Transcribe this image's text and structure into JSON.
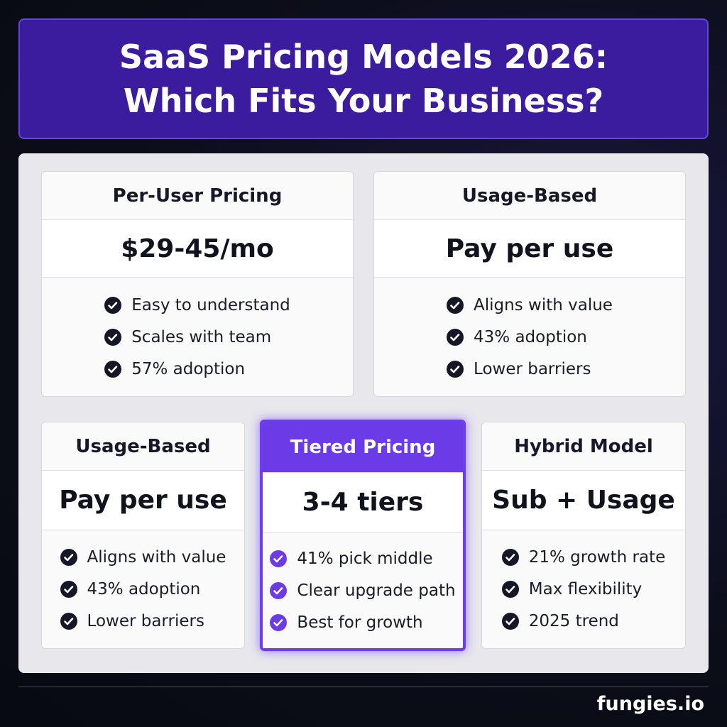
{
  "header": {
    "title_lines": [
      "SaaS Pricing Models 2026:",
      "Which Fits Your Business?"
    ]
  },
  "cards": [
    {
      "name": "Per-User Pricing",
      "price": "$29-45/mo",
      "features": [
        "Easy to understand",
        "Scales with team",
        "57% adoption"
      ]
    },
    {
      "name": "Usage-Based",
      "price": "Pay per use",
      "features": [
        "Aligns with value",
        "43% adoption",
        "Lower barriers"
      ]
    },
    {
      "name": "Usage-Based",
      "price": "Pay per use",
      "features": [
        "Aligns with value",
        "43% adoption",
        "Lower barriers"
      ]
    },
    {
      "name": "Tiered Pricing",
      "price": "3-4 tiers",
      "features": [
        "41% pick middle",
        "Clear upgrade path",
        "Best for growth"
      ],
      "featured": true
    },
    {
      "name": "Hybrid Model",
      "price": "Sub + Usage",
      "features": [
        "21% growth rate",
        "Max flexibility",
        "2025 trend"
      ]
    }
  ],
  "footer": {
    "brand": "fungies.io"
  }
}
